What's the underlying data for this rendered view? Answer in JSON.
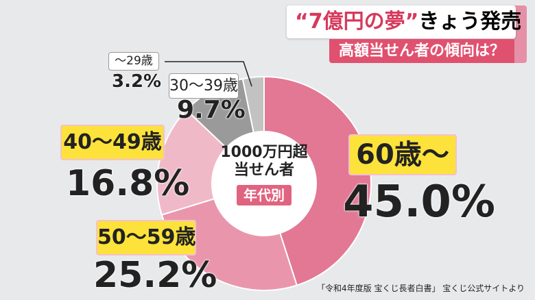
{
  "header": {
    "title_quote": "“7億円の夢”",
    "title_rest": "きょう発売",
    "subtitle": "高額当せん者の傾向は？"
  },
  "center": {
    "line1": "1000万円超",
    "line2": "当せん者",
    "badge": "年代別"
  },
  "source": "「令和4年度版 宝くじ長者白書」 宝くじ公式サイトより",
  "chart_data": {
    "type": "pie",
    "title": "1000万円超 当せん者 年代別",
    "categories": [
      "60歳〜",
      "50〜59歳",
      "40〜49歳",
      "30〜39歳",
      "〜29歳"
    ],
    "values": [
      45.0,
      25.2,
      16.8,
      9.7,
      3.2
    ],
    "labels": [
      "45.0%",
      "25.2%",
      "16.8%",
      "9.7%",
      "3.2%"
    ],
    "colors": [
      "#e27894",
      "#e996ac",
      "#f0b9c8",
      "#9a9a9a",
      "#c2c2c2"
    ],
    "start": "top",
    "direction": "clockwise",
    "donut": true
  }
}
